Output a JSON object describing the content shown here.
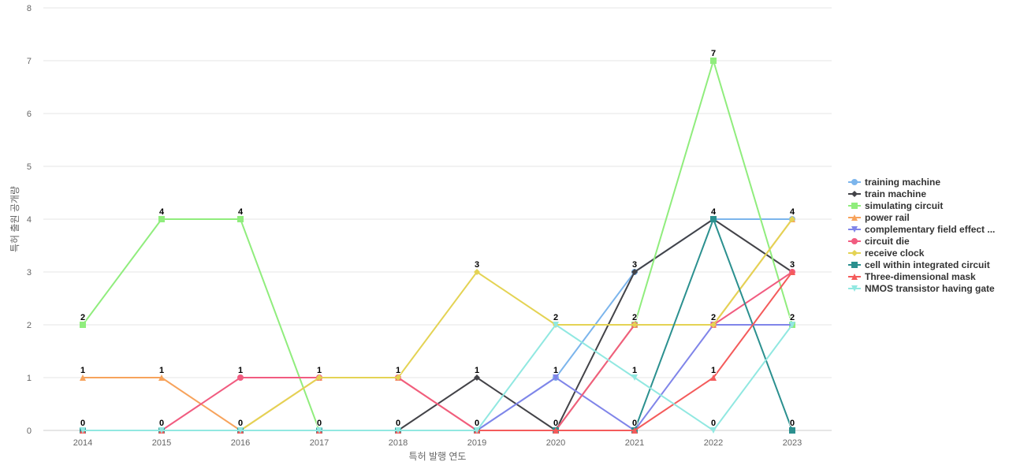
{
  "chart_data": {
    "type": "line",
    "xlabel": "특허 발행 연도",
    "ylabel": "특허 출원 공개량",
    "categories": [
      "2014",
      "2015",
      "2016",
      "2017",
      "2018",
      "2019",
      "2020",
      "2021",
      "2022",
      "2023"
    ],
    "ylim": [
      0,
      8
    ],
    "yticks": [
      0,
      1,
      2,
      3,
      4,
      5,
      6,
      7,
      8
    ],
    "grid": true,
    "legend_position": "right",
    "series": [
      {
        "name": "training machine",
        "color": "#7cb5ec",
        "marker": "circle",
        "values": [
          0,
          0,
          0,
          0,
          0,
          0,
          1,
          3,
          4,
          4
        ],
        "labels": [
          null,
          null,
          null,
          null,
          null,
          null,
          null,
          "3",
          null,
          null
        ]
      },
      {
        "name": "train machine",
        "color": "#434348",
        "marker": "diamond",
        "values": [
          0,
          0,
          0,
          0,
          0,
          1,
          0,
          3,
          4,
          3
        ],
        "labels": [
          null,
          null,
          null,
          null,
          null,
          "1",
          null,
          null,
          null,
          null
        ]
      },
      {
        "name": "simulating circuit",
        "color": "#90ed7d",
        "marker": "square",
        "values": [
          2,
          4,
          4,
          0,
          0,
          0,
          0,
          2,
          7,
          2
        ],
        "labels": [
          "2",
          "4",
          "4",
          null,
          null,
          null,
          null,
          null,
          "7",
          "2"
        ]
      },
      {
        "name": "power rail",
        "color": "#f7a35c",
        "marker": "triangle",
        "values": [
          1,
          1,
          0,
          1,
          1,
          0,
          0,
          2,
          2,
          4
        ],
        "labels": [
          "1",
          "1",
          null,
          null,
          null,
          null,
          null,
          "2",
          null,
          null
        ]
      },
      {
        "name": "complementary field effect ...",
        "color": "#8085e9",
        "marker": "triangle-down",
        "values": [
          0,
          0,
          0,
          0,
          0,
          0,
          1,
          0,
          2,
          2
        ],
        "labels": [
          null,
          null,
          null,
          null,
          null,
          null,
          "1",
          null,
          null,
          null
        ]
      },
      {
        "name": "circuit die",
        "color": "#f15c80",
        "marker": "circle",
        "values": [
          0,
          0,
          1,
          1,
          1,
          0,
          0,
          2,
          2,
          3
        ],
        "labels": [
          null,
          null,
          "1",
          "1",
          null,
          null,
          null,
          null,
          null,
          null
        ]
      },
      {
        "name": "receive clock",
        "color": "#e4d354",
        "marker": "diamond",
        "values": [
          0,
          0,
          0,
          1,
          1,
          3,
          2,
          2,
          2,
          4
        ],
        "labels": [
          null,
          null,
          null,
          null,
          "1",
          "3",
          "2",
          null,
          "2",
          "4"
        ]
      },
      {
        "name": "cell within integrated circuit",
        "color": "#2b908f",
        "marker": "square",
        "values": [
          0,
          0,
          0,
          0,
          0,
          0,
          0,
          0,
          4,
          0
        ],
        "labels": [
          null,
          null,
          null,
          null,
          null,
          null,
          null,
          null,
          "4",
          "0"
        ]
      },
      {
        "name": "Three-dimensional mask",
        "color": "#f45b5b",
        "marker": "triangle",
        "values": [
          0,
          0,
          0,
          0,
          0,
          0,
          0,
          0,
          1,
          3
        ],
        "labels": [
          null,
          null,
          null,
          null,
          null,
          null,
          "0",
          "0",
          "1",
          "3"
        ]
      },
      {
        "name": "NMOS transistor having gate",
        "color": "#91e8e1",
        "marker": "triangle-down",
        "values": [
          0,
          0,
          0,
          0,
          0,
          0,
          2,
          1,
          0,
          2
        ],
        "labels": [
          "0",
          "0",
          "0",
          "0",
          "0",
          "0",
          null,
          "1",
          "0",
          null
        ]
      }
    ]
  }
}
